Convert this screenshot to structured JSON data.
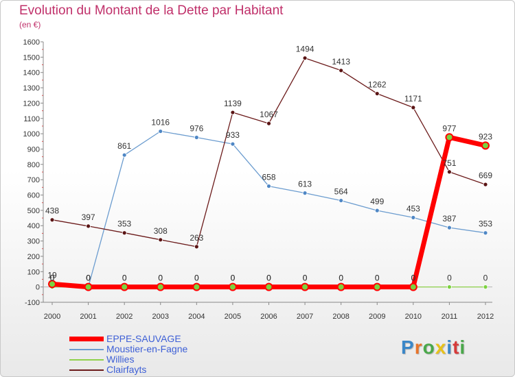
{
  "chart_data": {
    "type": "line",
    "title": "Evolution du Montant de la Dette par Habitant",
    "subtitle": "(en €)",
    "x": [
      "2000",
      "2001",
      "2002",
      "2003",
      "2004",
      "2005",
      "2006",
      "2007",
      "2008",
      "2009",
      "2010",
      "2011",
      "2012"
    ],
    "ylim": [
      -100,
      1600
    ],
    "yticks": [
      -100,
      0,
      100,
      200,
      300,
      400,
      500,
      600,
      700,
      800,
      900,
      1000,
      1100,
      1200,
      1300,
      1400,
      1500,
      1600
    ],
    "series": [
      {
        "name": "EPPE-SAUVAGE",
        "color": "#ff0000",
        "values": [
          19,
          0,
          0,
          0,
          0,
          0,
          0,
          0,
          0,
          0,
          0,
          977,
          923
        ]
      },
      {
        "name": "Moustier-en-Fagne",
        "color": "#6b9ccf",
        "values": [
          0,
          0,
          861,
          1016,
          976,
          933,
          658,
          613,
          564,
          499,
          453,
          387,
          353
        ]
      },
      {
        "name": "Willies",
        "color": "#8ed14a",
        "values": [
          0,
          0,
          0,
          0,
          0,
          0,
          0,
          0,
          0,
          0,
          0,
          0,
          0
        ]
      },
      {
        "name": "Clairfayts",
        "color": "#6b1a1a",
        "values": [
          438,
          397,
          353,
          308,
          263,
          1139,
          1067,
          1494,
          1413,
          1262,
          1171,
          751,
          669
        ]
      }
    ],
    "legend_position": "bottom-left"
  },
  "logo": {
    "text": "Proxiti",
    "colors": [
      "#3a87c8",
      "#e8742a",
      "#4aa84a",
      "#e8c21a",
      "#3a87c8",
      "#d63a3a",
      "#4aa84a"
    ]
  }
}
